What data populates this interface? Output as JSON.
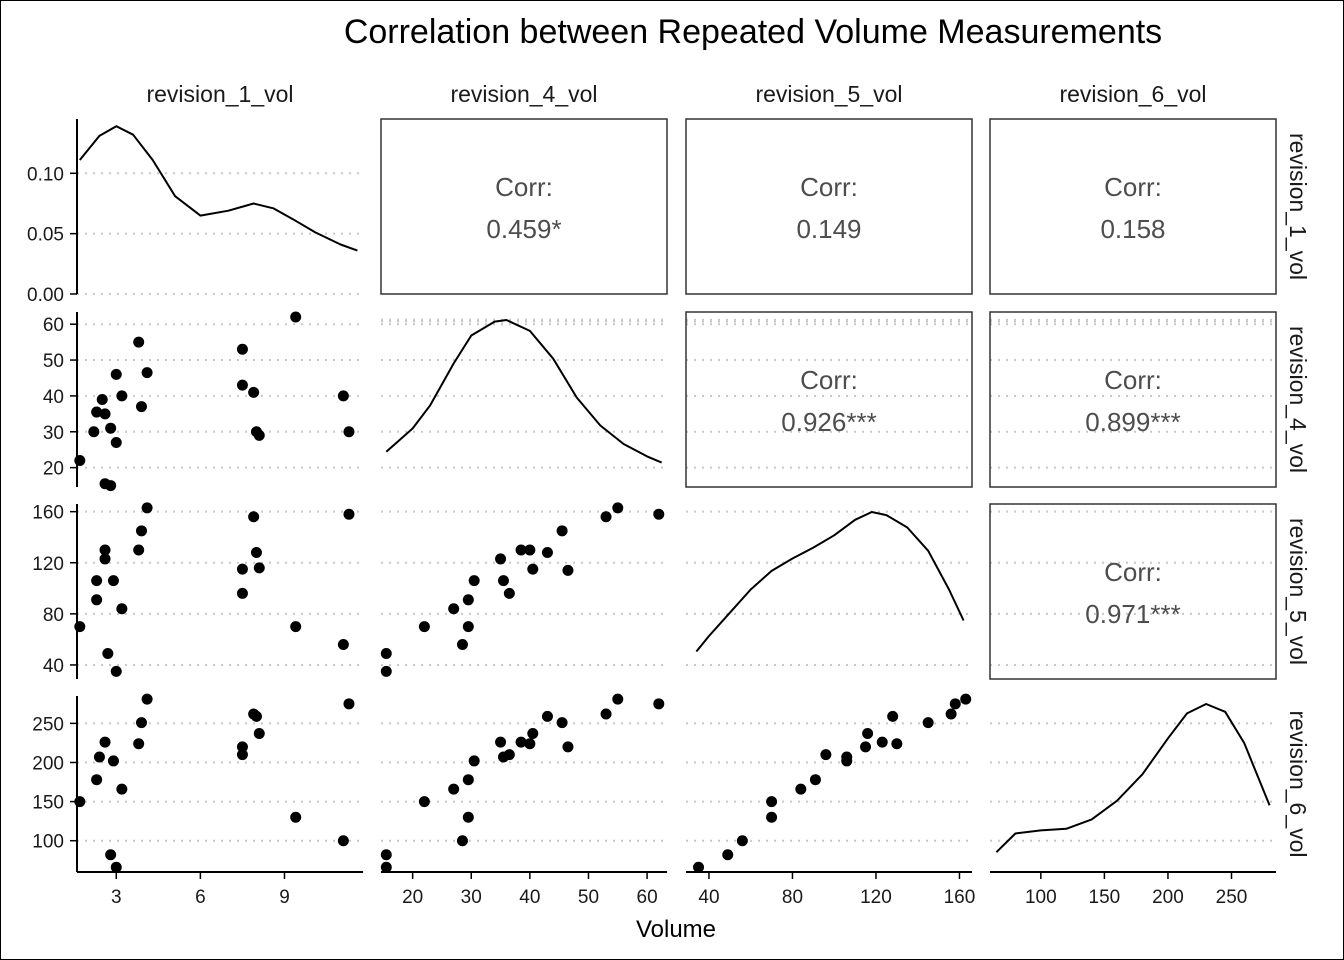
{
  "chart_data": {
    "type": "scatter",
    "title": "Correlation between Repeated Volume Measurements",
    "xlabel": "Volume",
    "variables": [
      "revision_1_vol",
      "revision_4_vol",
      "revision_5_vol",
      "revision_6_vol"
    ],
    "corr_label": "Corr:",
    "correlations": [
      {
        "row": 0,
        "col": 1,
        "value": "0.459*"
      },
      {
        "row": 0,
        "col": 2,
        "value": "0.149"
      },
      {
        "row": 0,
        "col": 3,
        "value": "0.158"
      },
      {
        "row": 1,
        "col": 2,
        "value": "0.926***"
      },
      {
        "row": 1,
        "col": 3,
        "value": "0.899***"
      },
      {
        "row": 2,
        "col": 3,
        "value": "0.971***"
      }
    ],
    "x_ticks": [
      [
        "3",
        "6",
        "9"
      ],
      [
        "20",
        "30",
        "40",
        "50",
        "60"
      ],
      [
        "40",
        "80",
        "120",
        "160"
      ],
      [
        "100",
        "150",
        "200",
        "250"
      ]
    ],
    "y_ticks": [
      [
        "0.00",
        "0.05",
        "0.10"
      ],
      [
        "20",
        "30",
        "40",
        "50",
        "60"
      ],
      [
        "40",
        "80",
        "120",
        "160"
      ],
      [
        "100",
        "150",
        "200",
        "250"
      ]
    ],
    "density_axis": {
      "ylim": [
        0,
        0.145
      ],
      "ticks": [
        0,
        0.05,
        0.1
      ]
    },
    "var_ranges": [
      [
        1.6,
        11.8
      ],
      [
        14.6,
        63.4
      ],
      [
        29,
        166
      ],
      [
        60,
        285
      ]
    ],
    "densities": [
      {
        "x": [
          1.7,
          2.4,
          3.0,
          3.6,
          4.3,
          5.1,
          6.0,
          7.0,
          7.9,
          8.6,
          9.3,
          10.1,
          11.0,
          11.6
        ],
        "y": [
          0.111,
          0.131,
          0.139,
          0.132,
          0.111,
          0.081,
          0.065,
          0.069,
          0.075,
          0.071,
          0.062,
          0.051,
          0.041,
          0.036
        ]
      },
      {
        "x": [
          15.5,
          20,
          23,
          27,
          30,
          34,
          36,
          40,
          44,
          48,
          52,
          56,
          60,
          62.5
        ],
        "y": [
          0.15,
          0.3,
          0.45,
          0.72,
          0.9,
          0.99,
          1.0,
          0.93,
          0.75,
          0.5,
          0.32,
          0.2,
          0.12,
          0.08
        ]
      },
      {
        "x": [
          34,
          40,
          50,
          60,
          70,
          80,
          90,
          100,
          110,
          118,
          125,
          135,
          145,
          155,
          162
        ],
        "y": [
          0.1,
          0.2,
          0.35,
          0.5,
          0.62,
          0.7,
          0.77,
          0.85,
          0.95,
          1.0,
          0.98,
          0.9,
          0.75,
          0.5,
          0.3
        ]
      },
      {
        "x": [
          65,
          80,
          100,
          120,
          140,
          160,
          180,
          200,
          215,
          230,
          245,
          260,
          270,
          280
        ],
        "y": [
          0.05,
          0.17,
          0.19,
          0.2,
          0.26,
          0.38,
          0.55,
          0.78,
          0.94,
          1.0,
          0.95,
          0.75,
          0.55,
          0.35
        ]
      }
    ],
    "points": [
      {
        "name": "rev1_vs_rev4",
        "x": [
          1.7,
          2.2,
          2.3,
          2.5,
          2.6,
          2.6,
          2.8,
          2.8,
          3.0,
          3.0,
          3.2,
          3.8,
          3.9,
          4.1,
          7.5,
          7.5,
          7.9,
          8.0,
          8.1,
          9.4,
          11.1,
          11.3
        ],
        "y": [
          22,
          30,
          35.5,
          39,
          35,
          15.5,
          31,
          15,
          27,
          46,
          40,
          55,
          37,
          46.5,
          53,
          43,
          41,
          30,
          29,
          62,
          40,
          30
        ]
      },
      {
        "name": "rev1_vs_rev5",
        "x": [
          1.7,
          2.3,
          2.3,
          2.6,
          2.6,
          2.7,
          2.9,
          3.0,
          3.2,
          3.8,
          3.9,
          4.1,
          7.5,
          7.5,
          7.9,
          8.0,
          8.1,
          9.4,
          11.1,
          11.3
        ],
        "y": [
          70,
          91,
          106,
          130,
          123,
          49,
          106,
          35,
          84,
          130,
          145,
          163,
          115,
          96,
          156,
          128,
          116,
          70,
          56,
          158
        ]
      },
      {
        "name": "rev1_vs_rev6",
        "x": [
          1.7,
          2.3,
          2.4,
          2.6,
          2.8,
          2.9,
          3.0,
          3.2,
          3.8,
          3.9,
          4.1,
          7.5,
          7.5,
          7.9,
          8.0,
          8.1,
          9.4,
          11.1,
          11.3
        ],
        "y": [
          150,
          178,
          207,
          226,
          82,
          202,
          66,
          166,
          224,
          251,
          281,
          220,
          210,
          262,
          259,
          237,
          130,
          100,
          275
        ]
      },
      {
        "name": "rev4_vs_rev5",
        "x": [
          15.5,
          15.5,
          22,
          27,
          28.5,
          29.5,
          29.5,
          30.5,
          35,
          35.5,
          36.5,
          38.5,
          40,
          40.5,
          43,
          45.5,
          46.5,
          53,
          55,
          62
        ],
        "y": [
          35,
          49,
          70,
          84,
          56,
          70,
          91,
          106,
          123,
          106,
          96,
          130,
          130,
          115,
          128,
          145,
          114,
          156,
          163,
          158
        ]
      },
      {
        "name": "rev4_vs_rev6",
        "x": [
          15.5,
          15.5,
          22,
          27,
          28.5,
          29.5,
          29.5,
          30.5,
          35,
          35.5,
          36.5,
          38.5,
          40,
          40.5,
          43,
          45.5,
          46.5,
          53,
          55,
          62
        ],
        "y": [
          66,
          82,
          150,
          166,
          100,
          130,
          178,
          202,
          226,
          207,
          210,
          226,
          224,
          237,
          259,
          251,
          220,
          262,
          281,
          275
        ]
      },
      {
        "name": "rev5_vs_rev6",
        "x": [
          35,
          49,
          56,
          70,
          70,
          84,
          91,
          96,
          106,
          106,
          115,
          116,
          123,
          128,
          130,
          145,
          156,
          158,
          163
        ],
        "y": [
          66,
          82,
          100,
          150,
          130,
          166,
          178,
          210,
          207,
          202,
          220,
          237,
          226,
          259,
          224,
          251,
          262,
          275,
          281
        ]
      }
    ],
    "grid": "dotted horizontal"
  }
}
